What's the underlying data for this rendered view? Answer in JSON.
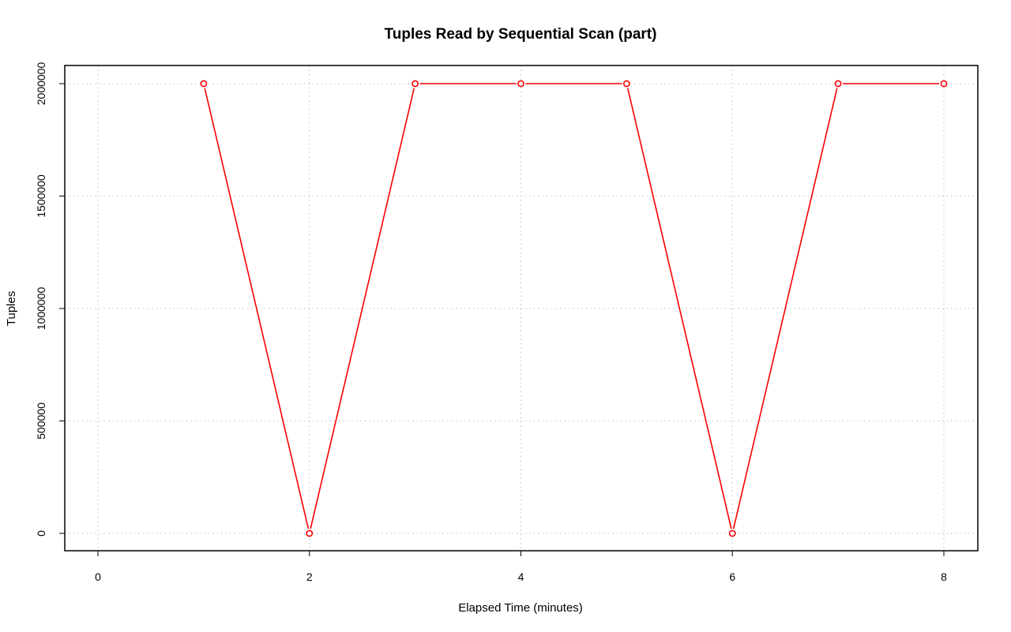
{
  "chart_data": {
    "type": "line",
    "title": "Tuples Read by Sequential Scan (part)",
    "xlabel": "Elapsed Time (minutes)",
    "ylabel": "Tuples",
    "xlim": [
      0,
      8
    ],
    "ylim": [
      0,
      2000000
    ],
    "x_ticks": [
      0,
      2,
      4,
      6,
      8
    ],
    "y_ticks": [
      0,
      500000,
      1000000,
      1500000,
      2000000
    ],
    "grid": true,
    "series": [
      {
        "color": "#ff0000",
        "x": [
          1,
          2,
          3,
          4,
          5,
          6,
          7,
          8
        ],
        "y": [
          2000000,
          0,
          2000000,
          2000000,
          2000000,
          0,
          2000000,
          2000000
        ]
      }
    ]
  }
}
